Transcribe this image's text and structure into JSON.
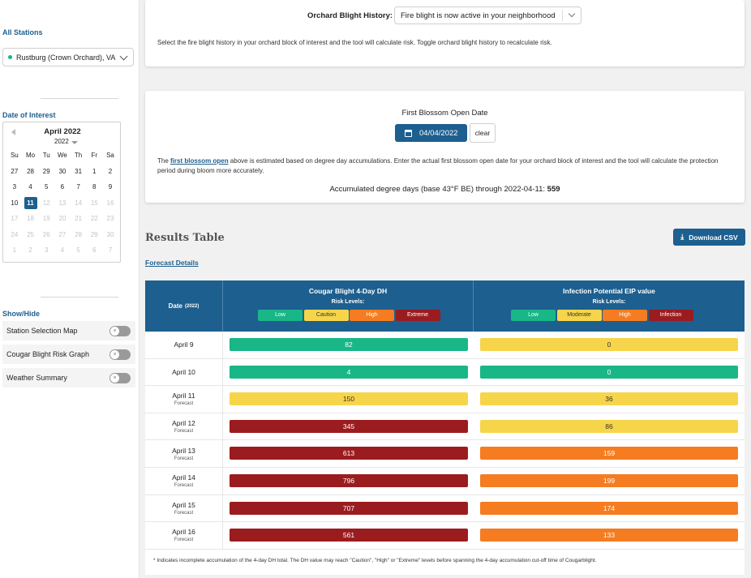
{
  "sidebar": {
    "all_stations_label": "All Stations",
    "station_value": "Rustburg (Crown Orchard), VA",
    "date_of_interest_label": "Date of Interest",
    "calendar": {
      "month_label": "April 2022",
      "year": "2022",
      "weekdays": [
        "Su",
        "Mo",
        "Tu",
        "We",
        "Th",
        "Fr",
        "Sa"
      ],
      "weeks": [
        [
          {
            "d": "27"
          },
          {
            "d": "28"
          },
          {
            "d": "29"
          },
          {
            "d": "30"
          },
          {
            "d": "31"
          },
          {
            "d": "1"
          },
          {
            "d": "2"
          }
        ],
        [
          {
            "d": "3"
          },
          {
            "d": "4"
          },
          {
            "d": "5"
          },
          {
            "d": "6"
          },
          {
            "d": "7"
          },
          {
            "d": "8"
          },
          {
            "d": "9"
          }
        ],
        [
          {
            "d": "10"
          },
          {
            "d": "11",
            "selected": true
          },
          {
            "d": "12",
            "muted": true
          },
          {
            "d": "13",
            "muted": true
          },
          {
            "d": "14",
            "muted": true
          },
          {
            "d": "15",
            "muted": true
          },
          {
            "d": "16",
            "muted": true
          }
        ],
        [
          {
            "d": "17",
            "muted": true
          },
          {
            "d": "18",
            "muted": true
          },
          {
            "d": "19",
            "muted": true
          },
          {
            "d": "20",
            "muted": true
          },
          {
            "d": "21",
            "muted": true
          },
          {
            "d": "22",
            "muted": true
          },
          {
            "d": "23",
            "muted": true
          }
        ],
        [
          {
            "d": "24",
            "muted": true
          },
          {
            "d": "25",
            "muted": true
          },
          {
            "d": "26",
            "muted": true
          },
          {
            "d": "27",
            "muted": true
          },
          {
            "d": "28",
            "muted": true
          },
          {
            "d": "29",
            "muted": true
          },
          {
            "d": "30",
            "muted": true
          }
        ],
        [
          {
            "d": "1",
            "muted": true
          },
          {
            "d": "2",
            "muted": true
          },
          {
            "d": "3",
            "muted": true
          },
          {
            "d": "4",
            "muted": true
          },
          {
            "d": "5",
            "muted": true
          },
          {
            "d": "6",
            "muted": true
          },
          {
            "d": "7",
            "muted": true
          }
        ]
      ]
    },
    "show_hide_label": "Show/Hide",
    "toggles": [
      {
        "label": "Station Selection Map",
        "on": false
      },
      {
        "label": "Cougar Blight Risk Graph",
        "on": false
      },
      {
        "label": "Weather Summary",
        "on": false
      }
    ]
  },
  "orchard": {
    "history_label": "Orchard Blight History:",
    "history_value": "Fire blight is now active in your neighborhood",
    "history_help": "Select the fire blight history in your orchard block of interest and the tool will calculate risk. Toggle orchard blight history to recalculate risk."
  },
  "blossom": {
    "label": "First Blossom Open Date",
    "date_value": "04/04/2022",
    "clear_label": "clear",
    "text_before": "The ",
    "link_text": "first blossom open",
    "text_after": " above is estimated based on degree day accumulations. Enter the actual first blossom open date for your orchard block of interest and the tool will calculate the protection period during bloom more accurately.",
    "accum_text": "Accumulated degree days (base 43°F BE) through 2022-04-11: ",
    "accum_value": "559"
  },
  "results": {
    "title": "Results Table",
    "download_label": "Download CSV",
    "forecast_link": "Forecast Details",
    "date_header": "Date",
    "date_header_year": "(2022)",
    "col1_title": "Cougar Blight 4-Day DH",
    "col2_title": "Infection Potential EIP value",
    "risk_levels_label": "Risk Levels:",
    "col1_levels": [
      {
        "label": "Low",
        "color": "#19b687",
        "text": "#fff"
      },
      {
        "label": "Caution",
        "color": "#f7d54a",
        "text": "#333"
      },
      {
        "label": "High",
        "color": "#f57c20",
        "text": "#fff"
      },
      {
        "label": "Extreme",
        "color": "#9b1c1f",
        "text": "#fff"
      }
    ],
    "col2_levels": [
      {
        "label": "Low",
        "color": "#19b687",
        "text": "#fff"
      },
      {
        "label": "Moderate",
        "color": "#f7d54a",
        "text": "#333"
      },
      {
        "label": "High",
        "color": "#f57c20",
        "text": "#fff"
      },
      {
        "label": "Infection",
        "color": "#9b1c1f",
        "text": "#fff"
      }
    ],
    "rows": [
      {
        "date": "April 9",
        "forecast": "",
        "dh": "82",
        "dh_level": "Low",
        "eip": "0",
        "eip_level": "Moderate"
      },
      {
        "date": "April 10",
        "forecast": "",
        "dh": "4",
        "dh_level": "Low",
        "eip": "0",
        "eip_level": "Low"
      },
      {
        "date": "April 11",
        "forecast": "Forecast",
        "dh": "150",
        "dh_level": "Caution",
        "eip": "36",
        "eip_level": "Moderate"
      },
      {
        "date": "April 12",
        "forecast": "Forecast",
        "dh": "345",
        "dh_level": "Extreme",
        "eip": "86",
        "eip_level": "Moderate"
      },
      {
        "date": "April 13",
        "forecast": "Forecast",
        "dh": "613",
        "dh_level": "Extreme",
        "eip": "159",
        "eip_level": "High"
      },
      {
        "date": "April 14",
        "forecast": "Forecast",
        "dh": "796",
        "dh_level": "Extreme",
        "eip": "199",
        "eip_level": "High"
      },
      {
        "date": "April 15",
        "forecast": "Forecast",
        "dh": "707",
        "dh_level": "Extreme",
        "eip": "174",
        "eip_level": "High"
      },
      {
        "date": "April 16",
        "forecast": "Forecast",
        "dh": "561",
        "dh_level": "Extreme",
        "eip": "133",
        "eip_level": "High"
      }
    ],
    "footnote": "* Indicates incomplete accumulation of the 4-day DH total. The DH value may reach \"Caution\", \"High\" or \"Extreme\" levels before spanning the 4-day accumulation cut-off time of Cougarblight."
  }
}
